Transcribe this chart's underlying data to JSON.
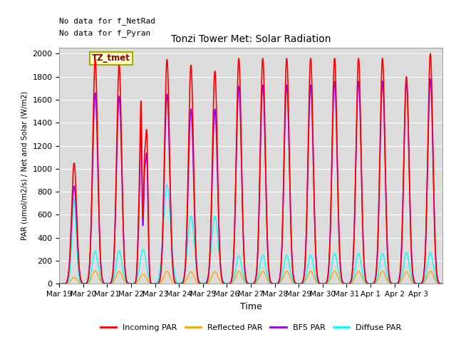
{
  "title": "Tonzi Tower Met: Solar Radiation",
  "ylabel": "PAR (umol/m2/s) / Net and Solar (W/m2)",
  "xlabel": "Time",
  "text_no_data1": "No data for f_NetRad",
  "text_no_data2": "No data for f_Pyran",
  "legend_label": "TZ_tmet",
  "ylim": [
    0,
    2050
  ],
  "line_colors": {
    "incoming": "#FF0000",
    "reflected": "#FFA500",
    "bf5": "#8B00FF",
    "diffuse": "#00FFFF"
  },
  "legend_entries": [
    "Incoming PAR",
    "Reflected PAR",
    "BF5 PAR",
    "Diffuse PAR"
  ],
  "legend_colors": [
    "#FF0000",
    "#FFA500",
    "#8B00FF",
    "#00FFFF"
  ],
  "background_color": "#DCDCDC",
  "xtick_labels": [
    "Mar 19",
    "Mar 20",
    "Mar 21",
    "Mar 22",
    "Mar 23",
    "Mar 24",
    "Mar 25",
    "Mar 26",
    "Mar 27",
    "Mar 28",
    "Mar 29",
    "Mar 30",
    "Mar 31",
    "Apr 1",
    "Apr 2",
    "Apr 3"
  ],
  "ytick_labels": [
    0,
    200,
    400,
    600,
    800,
    1000,
    1200,
    1400,
    1600,
    1800,
    2000
  ]
}
